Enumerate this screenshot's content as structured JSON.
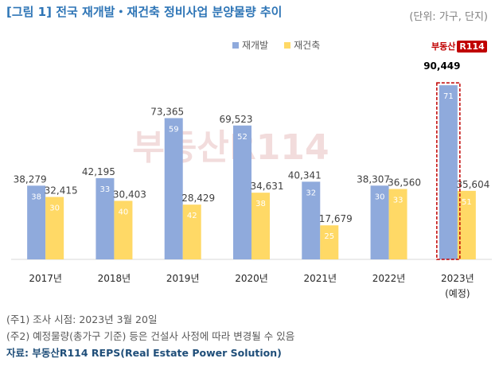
{
  "title": "[그림 1] 전국 재개발・재건축 정비사업 분양물량 추이",
  "unit": "(단위: 가구, 단지)",
  "logo": {
    "text": "부동산",
    "badge": "R114"
  },
  "watermark": "부동산R114",
  "colors": {
    "redevelopment": "#8faadc",
    "reconstruction": "#ffd966",
    "highlight": "#c00000",
    "share_label": "#ffffff"
  },
  "chart_data": {
    "type": "bar",
    "categories": [
      "2017년",
      "2018년",
      "2019년",
      "2020년",
      "2021년",
      "2022년",
      "2023년"
    ],
    "category_sublabels": [
      "",
      "",
      "",
      "",
      "",
      "",
      "(예정)"
    ],
    "series": [
      {
        "name": "재개발",
        "values": [
          38279,
          42195,
          73365,
          69523,
          40341,
          38307,
          90449
        ],
        "value_labels": [
          "38,279",
          "42,195",
          "73,365",
          "69,523",
          "40,341",
          "38,307",
          "90,449"
        ],
        "share_labels": [
          "38",
          "33",
          "59",
          "52",
          "32",
          "30",
          "71"
        ]
      },
      {
        "name": "재건축",
        "values": [
          32415,
          30403,
          28429,
          34631,
          17679,
          36560,
          35604
        ],
        "value_labels": [
          "32,415",
          "30,403",
          "28,429",
          "34,631",
          "17,679",
          "36,560",
          "35,604"
        ],
        "share_labels": [
          "30",
          "40",
          "42",
          "38",
          "25",
          "33",
          "51"
        ]
      }
    ],
    "highlight_category": "2023년",
    "ylim": [
      0,
      100000
    ],
    "legend_position": "top-center"
  },
  "notes": [
    "(주1) 조사 시점: 2023년 3월 20일",
    "(주2) 예정물량(총가구 기준) 등은 건설사 사정에 따라 변경될 수 있음"
  ],
  "source": "자료: 부동산R114 REPS(Real Estate Power Solution)"
}
